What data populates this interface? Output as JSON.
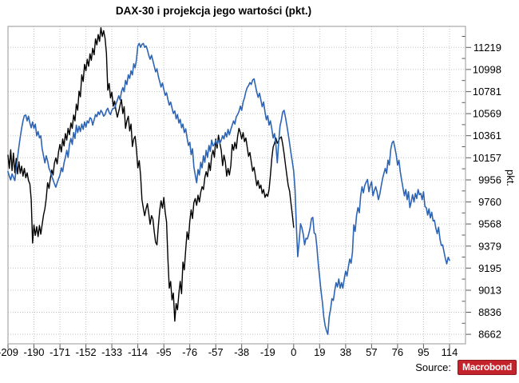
{
  "chart": {
    "title": "DAX-30 i projekcja jego wartości (pkt.)",
    "y_unit": "pkt."
  },
  "source": {
    "label": "Source:",
    "brand": "Macrobond"
  },
  "colors": {
    "actual_line": "#000000",
    "projection_line": "#2d64b4",
    "grid": "#c3c3c3",
    "plot_border": "#a8a8a8",
    "tick": "#5a5a5a",
    "brand_red": "#c5232b"
  },
  "chart_data": {
    "type": "line",
    "title": "DAX-30 i projekcja jego wartości (pkt.)",
    "xlabel": "",
    "ylabel": "pkt.",
    "scale": "log",
    "grid": "dotted",
    "legend": "none",
    "x_ticks": [
      -209,
      -190,
      -171,
      -152,
      -133,
      -114,
      -95,
      -76,
      -57,
      -38,
      -19,
      0,
      19,
      38,
      57,
      76,
      95,
      114
    ],
    "y_ticks": [
      11219,
      10998,
      10781,
      10569,
      10361,
      10157,
      9956,
      9760,
      9568,
      9379,
      9195,
      9013,
      8836,
      8662
    ],
    "x_range": [
      -209,
      125.7
    ],
    "y_range": [
      8588,
      11434
    ],
    "series": [
      {
        "name": "DAX-30",
        "color": "#000000",
        "x_start": -209,
        "x_step": 1,
        "values": [
          10180,
          10060,
          10230,
          10040,
          10200,
          10020,
          10150,
          10010,
          10120,
          10015,
          10080,
          9990,
          10060,
          9975,
          10020,
          9950,
          9920,
          9780,
          9405,
          9560,
          9470,
          9545,
          9460,
          9555,
          9480,
          9565,
          9645,
          9700,
          9790,
          9930,
          9880,
          9970,
          10045,
          10000,
          10110,
          10155,
          10100,
          10210,
          10280,
          10210,
          10330,
          10265,
          10380,
          10320,
          10430,
          10370,
          10480,
          10430,
          10555,
          10500,
          10660,
          10600,
          10785,
          10730,
          10945,
          10880,
          11050,
          10985,
          11100,
          11030,
          11155,
          11090,
          11210,
          11145,
          11305,
          11245,
          11350,
          11280,
          11420,
          11330,
          11390,
          11310,
          11160,
          10795,
          10860,
          10720,
          10775,
          10640,
          10690,
          10600,
          10535,
          10590,
          10650,
          10705,
          10570,
          10635,
          10430,
          10500,
          10545,
          10405,
          10470,
          10260,
          10330,
          10355,
          10235,
          10065,
          10130,
          9995,
          9780,
          9705,
          9640,
          9700,
          9745,
          9660,
          9565,
          9640,
          9610,
          9500,
          9410,
          9390,
          9550,
          9685,
          9770,
          9705,
          9800,
          9670,
          9585,
          9270,
          9030,
          9085,
          8935,
          8990,
          8765,
          8905,
          8855,
          8985,
          9085,
          8985,
          9245,
          9180,
          9350,
          9500,
          9435,
          9590,
          9690,
          9615,
          9755,
          9790,
          9730,
          9820,
          9760,
          9845,
          9895,
          9870,
          9975,
          10030,
          9985,
          10110,
          10040,
          10175,
          10225,
          10160,
          10330,
          10245,
          10365,
          10290,
          10225,
          10085,
          10180,
          10120,
          9990,
          10060,
          10000,
          10085,
          10280,
          10225,
          10300,
          10240,
          10355,
          10430,
          10390,
          10330,
          10390,
          10305,
          10340,
          10255,
          10170,
          10205,
          10120,
          10035,
          10070,
          9990,
          9905,
          9950,
          9880,
          9910,
          9835,
          9870,
          9800,
          9830,
          9810,
          9870,
          10000,
          10150,
          10255,
          10290,
          10340,
          10290,
          10315,
          10340,
          10350,
          10280,
          10195,
          10095,
          10000,
          9905,
          9855,
          9750,
          9650,
          9540
        ]
      },
      {
        "name": "projekcja",
        "color": "#2d64b4",
        "x_start": -209,
        "x_step": 1,
        "values": [
          10030,
          9990,
          9955,
          10010,
          9980,
          9950,
          10060,
          10160,
          10260,
          10350,
          10430,
          10500,
          10550,
          10555,
          10500,
          10545,
          10480,
          10435,
          10490,
          10430,
          10470,
          10360,
          10400,
          10340,
          10360,
          10240,
          10175,
          10110,
          10175,
          10130,
          10060,
          10030,
          9990,
          9955,
          9920,
          9890,
          9930,
          9965,
          10000,
          10065,
          10030,
          10110,
          10160,
          10225,
          10160,
          10280,
          10335,
          10280,
          10390,
          10335,
          10460,
          10390,
          10450,
          10400,
          10470,
          10420,
          10490,
          10440,
          10500,
          10480,
          10530,
          10520,
          10460,
          10510,
          10560,
          10540,
          10585,
          10560,
          10600,
          10580,
          10545,
          10560,
          10600,
          10620,
          10580,
          10560,
          10600,
          10620,
          10620,
          10660,
          10700,
          10740,
          10700,
          10780,
          10820,
          10780,
          10890,
          10850,
          10945,
          10910,
          10985,
          10945,
          11055,
          11015,
          11095,
          11235,
          11260,
          11220,
          11250,
          11260,
          11220,
          11235,
          11195,
          11140,
          11100,
          11140,
          11085,
          11030,
          10975,
          11005,
          10930,
          10880,
          10825,
          10865,
          10800,
          10745,
          10770,
          10705,
          10650,
          10680,
          10625,
          10570,
          10595,
          10520,
          10560,
          10480,
          10515,
          10435,
          10470,
          10390,
          10425,
          10340,
          10270,
          10300,
          10185,
          10240,
          10075,
          10000,
          9930,
          10050,
          10000,
          10115,
          10065,
          10175,
          10115,
          10225,
          10160,
          10270,
          10215,
          10320,
          10265,
          10280,
          10315,
          10280,
          10320,
          10290,
          10320,
          10360,
          10330,
          10390,
          10350,
          10420,
          10370,
          10420,
          10460,
          10500,
          10470,
          10540,
          10560,
          10590,
          10640,
          10600,
          10680,
          10720,
          10780,
          10820,
          10840,
          10870,
          10850,
          10895,
          10905,
          10840,
          10775,
          10725,
          10765,
          10700,
          10635,
          10680,
          10585,
          10510,
          10550,
          10460,
          10500,
          10425,
          10340,
          10380,
          10280,
          10110,
          10300,
          10450,
          10510,
          10585,
          10600,
          10535,
          10460,
          10375,
          10290,
          10200,
          10120,
          10035,
          9870,
          9545,
          9290,
          9420,
          9570,
          9535,
          9480,
          9390,
          9445,
          9440,
          9480,
          9530,
          9615,
          9625,
          9490,
          9480,
          9370,
          9230,
          9120,
          9010,
          8915,
          8800,
          8730,
          8690,
          8662,
          8800,
          8860,
          8945,
          8930,
          9010,
          9075,
          9040,
          9105,
          9030,
          9075,
          9030,
          9105,
          9170,
          9130,
          9205,
          9270,
          9235,
          9325,
          9560,
          9505,
          9645,
          9710,
          9665,
          9815,
          9895,
          9840,
          9905,
          9935,
          9960,
          9850,
          9905,
          9940,
          9815,
          9860,
          9895,
          9850,
          9780,
          9830,
          9900,
          9965,
          10015,
          10060,
          10015,
          10135,
          10090,
          10235,
          10295,
          10310,
          10250,
          10185,
          10090,
          10135,
          10030,
          9950,
          9880,
          9815,
          9870,
          9780,
          9850,
          9710,
          9760,
          9825,
          9760,
          9835,
          9790,
          9870,
          9825,
          9835,
          9780,
          9850,
          9720,
          9710,
          9645,
          9700,
          9620,
          9670,
          9595,
          9600,
          9530,
          9485,
          9540,
          9440,
          9385,
          9390,
          9330,
          9275,
          9230,
          9285,
          9260
        ]
      }
    ]
  }
}
